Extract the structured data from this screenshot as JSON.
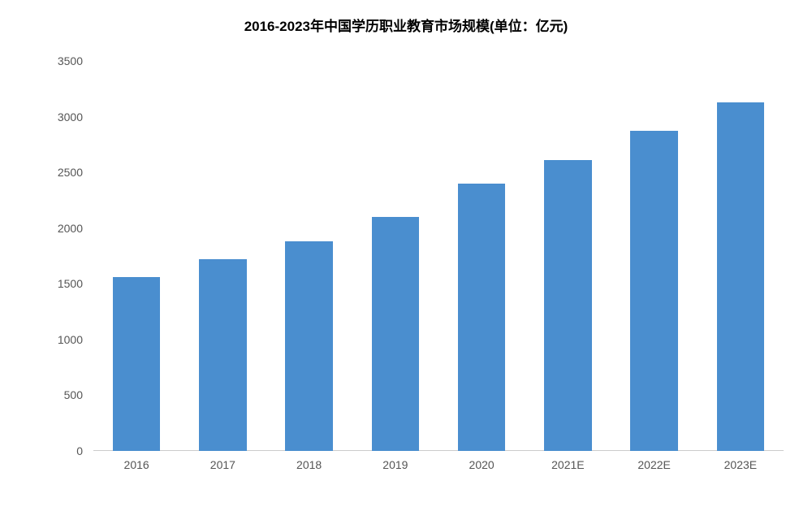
{
  "chart": {
    "type": "bar",
    "title": "2016-2023年中国学历职业教育市场规模(单位：亿元)",
    "title_fontsize": 17,
    "title_color": "#000000",
    "background_color": "#ffffff",
    "categories": [
      "2016",
      "2017",
      "2018",
      "2019",
      "2020",
      "2021E",
      "2022E",
      "2023E"
    ],
    "values": [
      1560,
      1720,
      1880,
      2100,
      2400,
      2610,
      2870,
      3130
    ],
    "bar_color": "#4a8ecf",
    "ylim": [
      0,
      3500
    ],
    "ytick_step": 500,
    "yticks": [
      "0",
      "500",
      "1000",
      "1500",
      "2000",
      "2500",
      "3000",
      "3500"
    ],
    "ytick_fontsize": 14,
    "xtick_fontsize": 14,
    "tick_color": "#555555",
    "bar_width_ratio": 0.55,
    "grid": false
  }
}
